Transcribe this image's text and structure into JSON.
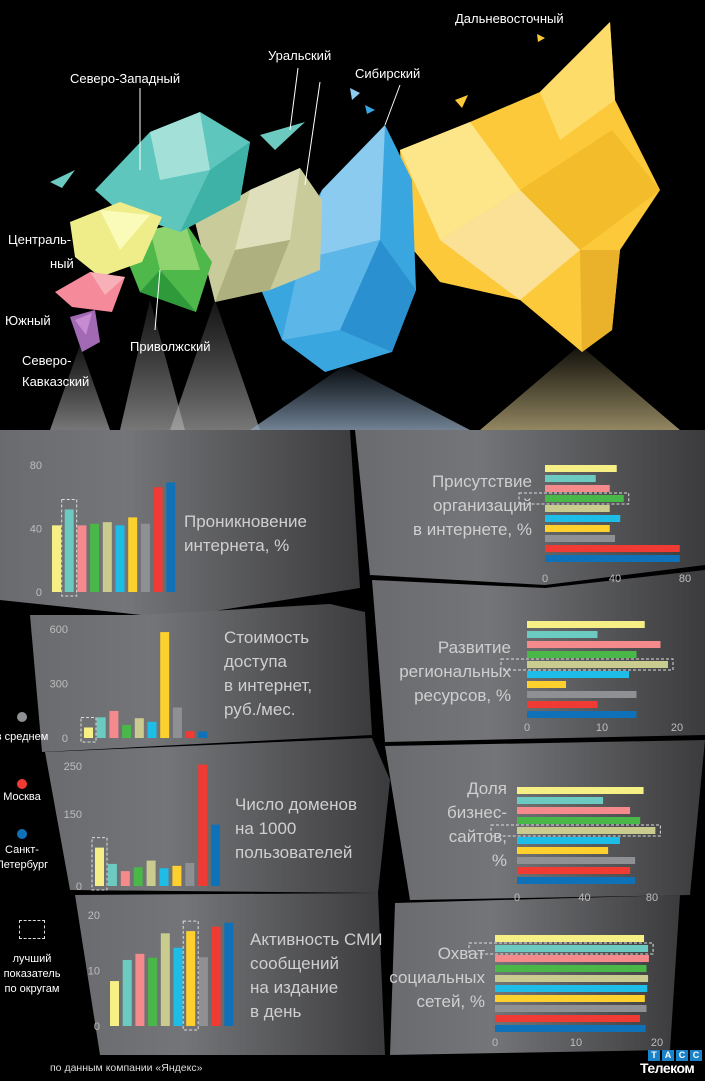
{
  "colors": {
    "series": [
      "#f5ef86",
      "#6ccac0",
      "#f48a8c",
      "#4ab749",
      "#c9cc8e",
      "#1ebde8",
      "#fdd02d",
      "#8f9094",
      "#ef3b33",
      "#0f72b9"
    ],
    "panel": "#5a5b5e",
    "best_box": "#dddddd"
  },
  "map": {
    "regions": {
      "far_east": "Дальневосточный",
      "ural": "Уральский",
      "siberia": "Сибирский",
      "northwest": "Северо-Западный",
      "central_1": "Централь-",
      "central_2": "ный",
      "south": "Южный",
      "volga": "Приволжский",
      "caucasus_1": "Северо-",
      "caucasus_2": "Кавказский"
    }
  },
  "legend": {
    "average": "в среднем",
    "moscow": "Москва",
    "spb_1": "Санкт-",
    "spb_2": "Петербург",
    "best_1": "лучший",
    "best_2": "показатель",
    "best_3": "по округам"
  },
  "source": "по данным компании «Яндекс»",
  "logo": {
    "top": [
      "Т",
      "А",
      "С",
      "С"
    ],
    "bottom": "Телеком"
  },
  "chart_data": [
    {
      "type": "bar",
      "orientation": "vertical",
      "title_lines": [
        "Проникновение",
        "интернета, %"
      ],
      "ylim": [
        0,
        80
      ],
      "ticks": [
        "0",
        "40",
        "80"
      ],
      "values": [
        42,
        52,
        42,
        43,
        44,
        42,
        47,
        43,
        66,
        69
      ],
      "best_index": 1
    },
    {
      "type": "bar",
      "orientation": "vertical",
      "title_lines": [
        "Стоимость",
        "доступа",
        "в интернет,",
        "руб./мес."
      ],
      "ylim": [
        0,
        600
      ],
      "ticks": [
        "0",
        "300",
        "600"
      ],
      "values": [
        58,
        114,
        149,
        72,
        109,
        89,
        583,
        168,
        38,
        36
      ],
      "best_index": 0
    },
    {
      "type": "bar",
      "orientation": "vertical",
      "title_lines": [
        "Число доменов",
        "на 1000",
        "пользователей"
      ],
      "ylim": [
        0,
        250
      ],
      "ticks": [
        "0",
        "150",
        "250"
      ],
      "values": [
        80,
        46,
        31,
        39,
        53,
        37,
        42,
        48,
        253,
        128
      ],
      "best_index": 0
    },
    {
      "type": "bar",
      "orientation": "vertical",
      "title_lines": [
        "Активность СМИ",
        "сообщений",
        "на издание",
        "в день"
      ],
      "ylim": [
        0,
        20
      ],
      "ticks": [
        "0",
        "10",
        "20"
      ],
      "values": [
        8.1,
        11.9,
        13,
        12.3,
        16.7,
        14.1,
        17.1,
        12.4,
        17.9,
        18.6
      ],
      "best_index": 6
    },
    {
      "type": "bar",
      "orientation": "horizontal",
      "title_lines": [
        "Присутствие",
        "организаций",
        "в интернете, %"
      ],
      "xlim": [
        0,
        80
      ],
      "ticks": [
        "0",
        "40",
        "80"
      ],
      "values": [
        41,
        29,
        37,
        45,
        37,
        43,
        37,
        40,
        77,
        77
      ],
      "best_index": 3
    },
    {
      "type": "bar",
      "orientation": "horizontal",
      "title_lines": [
        "Развитие",
        "региональных",
        "ресурсов, %"
      ],
      "xlim": [
        0,
        20
      ],
      "ticks": [
        "0",
        "10",
        "20"
      ],
      "values": [
        15.7,
        9.4,
        17.8,
        14.6,
        18.8,
        13.6,
        5.2,
        14.6,
        9.4,
        14.6
      ],
      "best_index": 4
    },
    {
      "type": "bar",
      "orientation": "horizontal",
      "title_lines": [
        "Доля",
        "бизнес-",
        "сайтов,",
        "%"
      ],
      "xlim": [
        0,
        80
      ],
      "ticks": [
        "0",
        "40",
        "80"
      ],
      "values": [
        75,
        51,
        67,
        73,
        82,
        61,
        54,
        70,
        67,
        70
      ],
      "best_index": 4
    },
    {
      "type": "bar",
      "orientation": "horizontal",
      "title_lines": [
        "Охват",
        "социальных",
        "сетей, %"
      ],
      "xlim": [
        0,
        20
      ],
      "ticks": [
        "0",
        "10",
        "20"
      ],
      "values": [
        18.4,
        18.9,
        19,
        18.7,
        18.9,
        18.8,
        18.5,
        18.7,
        17.9,
        18.6
      ],
      "best_index": 1
    }
  ]
}
